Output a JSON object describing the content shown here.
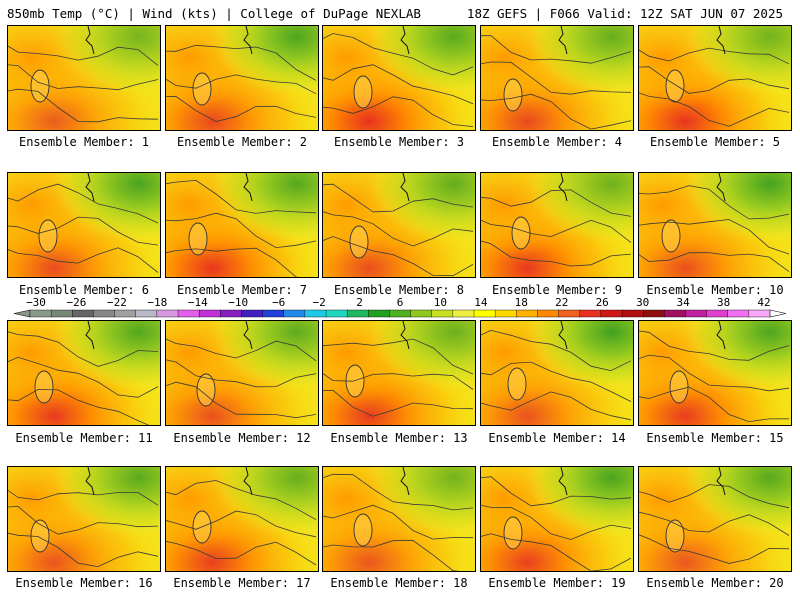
{
  "header": {
    "left": "850mb Temp (°C) | Wind (kts) | College of DuPage NEXLAB",
    "right": "18Z GEFS | F066 Valid: 12Z SAT JUN 07 2025"
  },
  "panels": [
    {
      "label": "Ensemble Member: 1"
    },
    {
      "label": "Ensemble Member: 2"
    },
    {
      "label": "Ensemble Member: 3"
    },
    {
      "label": "Ensemble Member: 4"
    },
    {
      "label": "Ensemble Member: 5"
    },
    {
      "label": "Ensemble Member: 6"
    },
    {
      "label": "Ensemble Member: 7"
    },
    {
      "label": "Ensemble Member: 8"
    },
    {
      "label": "Ensemble Member: 9"
    },
    {
      "label": "Ensemble Member: 10"
    },
    {
      "label": "Ensemble Member: 11"
    },
    {
      "label": "Ensemble Member: 12"
    },
    {
      "label": "Ensemble Member: 13"
    },
    {
      "label": "Ensemble Member: 14"
    },
    {
      "label": "Ensemble Member: 15"
    },
    {
      "label": "Ensemble Member: 16"
    },
    {
      "label": "Ensemble Member: 17"
    },
    {
      "label": "Ensemble Member: 18"
    },
    {
      "label": "Ensemble Member: 19"
    },
    {
      "label": "Ensemble Member: 20"
    }
  ],
  "colorbar": {
    "labels": [
      "-30",
      "-26",
      "-22",
      "-18",
      "-14",
      "-10",
      "-6",
      "-2",
      "2",
      "6",
      "10",
      "14",
      "18",
      "22",
      "26",
      "30",
      "34",
      "38",
      "42"
    ],
    "colors": [
      "#8a9a8a",
      "#778877",
      "#666666",
      "#888888",
      "#a0a0a0",
      "#b8b8c8",
      "#d898e0",
      "#e060e8",
      "#c030d8",
      "#8820c0",
      "#4020c0",
      "#2040d8",
      "#2088e8",
      "#20c8e8",
      "#20d8c0",
      "#20b860",
      "#20a020",
      "#50b020",
      "#90c820",
      "#c8e020",
      "#f0f040",
      "#ffff00",
      "#ffd800",
      "#ffb000",
      "#ff8800",
      "#f06020",
      "#e83020",
      "#d01818",
      "#b01010",
      "#901010",
      "#a01060",
      "#c020a0",
      "#e040d0",
      "#f070f0",
      "#f8a8f8"
    ]
  }
}
